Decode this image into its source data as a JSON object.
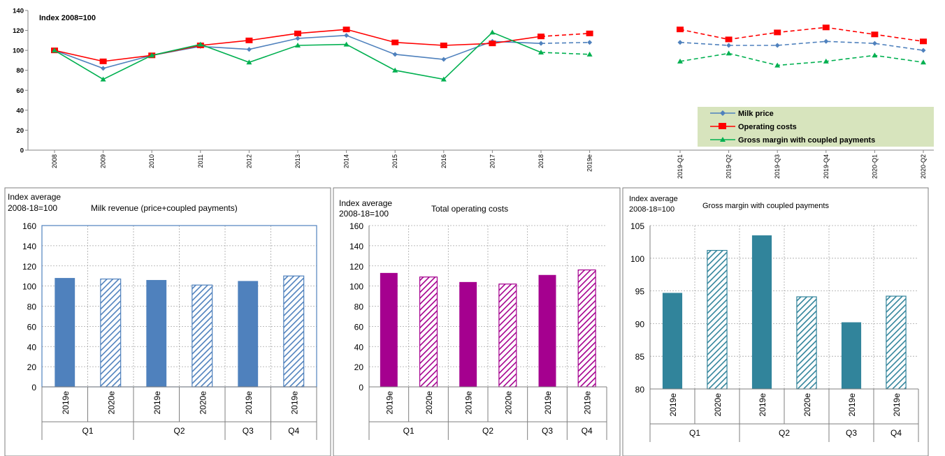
{
  "colors": {
    "milk": "#4f81bd",
    "costs": "#ff0000",
    "margin": "#00b050",
    "legend_bg": "#d7e4bd",
    "bar_blue": "#4f81bd",
    "bar_magenta": "#a5008f",
    "bar_teal": "#31849b",
    "grid": "#a6a6a6",
    "panel_border": "#7f7f7f",
    "plot_border_blue": "#4f81bd"
  },
  "chart_data": [
    {
      "type": "line",
      "title": "Index 2008=100",
      "ylim": [
        0,
        140
      ],
      "yticks": [
        0,
        20,
        40,
        60,
        80,
        100,
        120,
        140
      ],
      "grid": false,
      "legend_position": "bottom-right",
      "annual_categories": [
        "2008",
        "2009",
        "2010",
        "2011",
        "2012",
        "2013",
        "2014",
        "2015",
        "2016",
        "2017",
        "2018",
        "2019e"
      ],
      "quarter_categories": [
        "2019-Q1",
        "2019-Q2",
        "2019-Q3",
        "2019-Q4",
        "2020-Q1",
        "2020-Q2"
      ],
      "series": [
        {
          "name": "Milk price",
          "annual": [
            100,
            82,
            95,
            104,
            101,
            112,
            115,
            96,
            91,
            109,
            107,
            108
          ],
          "quarterly": [
            108,
            105,
            105,
            109,
            107,
            100
          ]
        },
        {
          "name": "Operating costs",
          "annual": [
            100,
            89,
            95,
            105,
            110,
            117,
            121,
            108,
            105,
            107,
            114,
            117
          ],
          "quarterly": [
            121,
            111,
            118,
            123,
            116,
            109
          ]
        },
        {
          "name": "Gross margin with coupled payments",
          "annual": [
            100,
            71,
            95,
            106,
            88,
            105,
            106,
            80,
            71,
            118,
            98,
            96
          ],
          "quarterly": [
            89,
            97,
            85,
            89,
            95,
            88
          ]
        }
      ]
    },
    {
      "type": "bar",
      "title": "Milk revenue (price+coupled payments)",
      "ylabel": "Index average 2008-18=100",
      "ylim": [
        0,
        160
      ],
      "yticks": [
        0,
        20,
        40,
        60,
        80,
        100,
        120,
        140,
        160
      ],
      "categories": [
        "2019e",
        "2020e",
        "2019e",
        "2020e",
        "2019e",
        "2019e"
      ],
      "groups": [
        {
          "label": "Q1",
          "span": 2
        },
        {
          "label": "Q2",
          "span": 2
        },
        {
          "label": "Q3",
          "span": 1
        },
        {
          "label": "Q4",
          "span": 1
        }
      ],
      "hatched": [
        false,
        true,
        false,
        true,
        false,
        true
      ],
      "values": [
        108,
        107,
        106,
        101,
        105,
        110
      ],
      "grid": true
    },
    {
      "type": "bar",
      "title": "Total operating costs",
      "ylabel": "Index average 2008-18=100",
      "ylim": [
        0,
        160
      ],
      "yticks": [
        0,
        20,
        40,
        60,
        80,
        100,
        120,
        140,
        160
      ],
      "categories": [
        "2019e",
        "2020e",
        "2019e",
        "2020e",
        "2019e",
        "2019e"
      ],
      "groups": [
        {
          "label": "Q1",
          "span": 2
        },
        {
          "label": "Q2",
          "span": 2
        },
        {
          "label": "Q3",
          "span": 1
        },
        {
          "label": "Q4",
          "span": 1
        }
      ],
      "hatched": [
        false,
        true,
        false,
        true,
        false,
        true
      ],
      "values": [
        113,
        109,
        104,
        102,
        111,
        116
      ],
      "grid": true
    },
    {
      "type": "bar",
      "title": "Gross margin with coupled payments",
      "ylabel": "Index average 2008-18=100",
      "ylim": [
        80,
        105
      ],
      "yticks": [
        80,
        85,
        90,
        95,
        100,
        105
      ],
      "categories": [
        "2019e",
        "2020e",
        "2019e",
        "2020e",
        "2019e",
        "2019e"
      ],
      "groups": [
        {
          "label": "Q1",
          "span": 2
        },
        {
          "label": "Q2",
          "span": 2
        },
        {
          "label": "Q3",
          "span": 1
        },
        {
          "label": "Q4",
          "span": 1
        }
      ],
      "hatched": [
        false,
        true,
        false,
        true,
        false,
        true
      ],
      "values": [
        94.7,
        101.2,
        103.5,
        94.1,
        90.2,
        94.2
      ],
      "grid": true
    }
  ]
}
